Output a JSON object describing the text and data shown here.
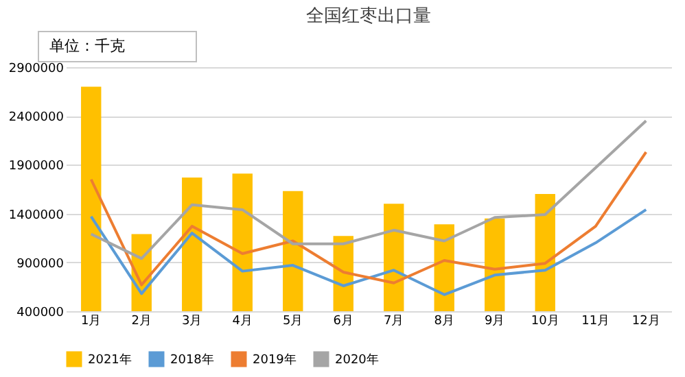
{
  "chart_data": {
    "type": "bar",
    "title": "全国红枣出口量",
    "annotations": [
      "单位：千克"
    ],
    "categories": [
      "1月",
      "2月",
      "3月",
      "4月",
      "5月",
      "6月",
      "7月",
      "8月",
      "9月",
      "10月",
      "11月",
      "12月"
    ],
    "series": [
      {
        "name": "2021年",
        "color": "#ffc000",
        "values": [
          2700000,
          1190000,
          1770000,
          1810000,
          1630000,
          1170000,
          1500000,
          1290000,
          1350000,
          1600000,
          null,
          null
        ]
      },
      {
        "name": "2018年",
        "type": "line",
        "color": "#5b9bd5",
        "values": [
          1370000,
          580000,
          1200000,
          810000,
          870000,
          660000,
          820000,
          570000,
          770000,
          820000,
          1100000,
          1440000
        ]
      },
      {
        "name": "2019年",
        "type": "line",
        "color": "#ed7d31",
        "values": [
          1750000,
          670000,
          1270000,
          990000,
          1120000,
          800000,
          690000,
          920000,
          830000,
          890000,
          1270000,
          2030000
        ]
      },
      {
        "name": "2020年",
        "type": "line",
        "color": "#a5a5a5",
        "values": [
          1190000,
          940000,
          1490000,
          1440000,
          1090000,
          1090000,
          1230000,
          1120000,
          1360000,
          1390000,
          1870000,
          2350000
        ]
      }
    ],
    "ylim": [
      400000,
      2900000
    ],
    "yticks": [
      400000,
      900000,
      1400000,
      1900000,
      2400000,
      2900000
    ],
    "grid": "y",
    "legend": "bottom",
    "line_style": "solid",
    "marker": "none"
  }
}
